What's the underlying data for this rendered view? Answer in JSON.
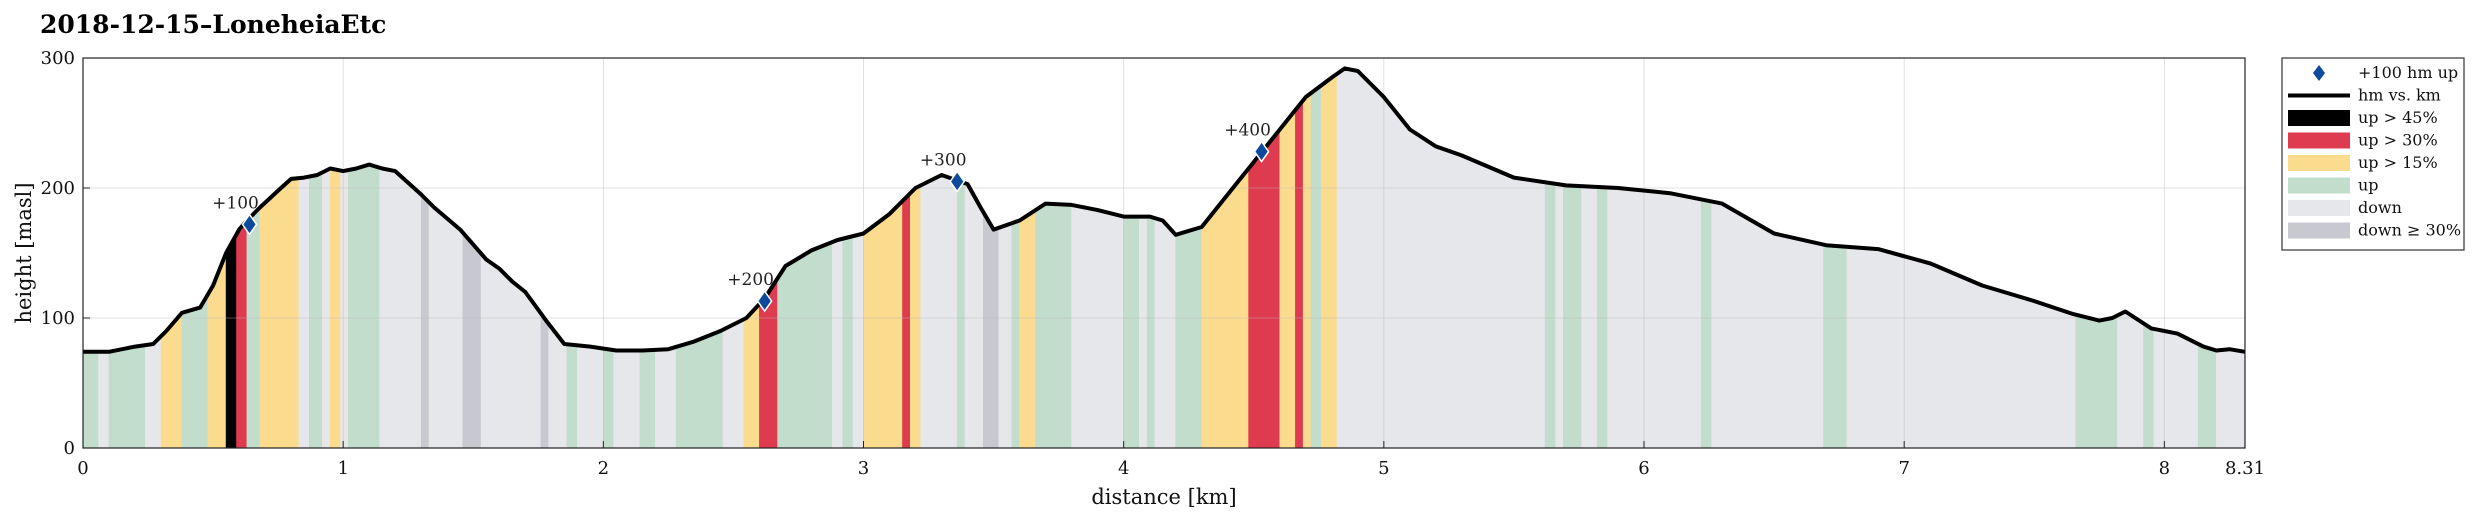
{
  "chart_data": {
    "type": "area",
    "title": "2018-12-15–LoneheiaEtc",
    "xlabel": "distance [km]",
    "ylabel": "height [masl]",
    "xlim": [
      0,
      8.31
    ],
    "ylim": [
      0,
      300
    ],
    "xticks": [
      0,
      1,
      2,
      3,
      4,
      5,
      6,
      7,
      8,
      8.31
    ],
    "xtick_labels": [
      "0",
      "1",
      "2",
      "3",
      "4",
      "5",
      "6",
      "7",
      "8",
      "8.31"
    ],
    "yticks": [
      0,
      100,
      200,
      300
    ],
    "ytick_labels": [
      "0",
      "100",
      "200",
      "300"
    ],
    "grid": true,
    "legend_position": "right",
    "colors": {
      "profile": "#000000",
      "marker": "#0d4a9c",
      "up45": "#000000",
      "up30": "#de3b50",
      "up15": "#fbdc8f",
      "up": "#c3ddcc",
      "down": "#e6e7ea",
      "down30": "#c8c9d0"
    },
    "legend": [
      {
        "key": "marker",
        "label": "+100 hm up"
      },
      {
        "key": "profile",
        "label": "hm vs. km"
      },
      {
        "key": "up45",
        "label": "up > 45%"
      },
      {
        "key": "up30",
        "label": "up > 30%"
      },
      {
        "key": "up15",
        "label": "up > 15%"
      },
      {
        "key": "up",
        "label": "up"
      },
      {
        "key": "down",
        "label": "down"
      },
      {
        "key": "down30",
        "label": "down ≥ 30%"
      }
    ],
    "profile": {
      "x": [
        0,
        0.1,
        0.2,
        0.27,
        0.32,
        0.38,
        0.45,
        0.5,
        0.55,
        0.6,
        0.63,
        0.68,
        0.75,
        0.8,
        0.85,
        0.9,
        0.95,
        1.0,
        1.05,
        1.1,
        1.15,
        1.2,
        1.3,
        1.35,
        1.45,
        1.55,
        1.6,
        1.65,
        1.7,
        1.78,
        1.85,
        1.95,
        2.05,
        2.15,
        2.25,
        2.35,
        2.45,
        2.55,
        2.62,
        2.7,
        2.8,
        2.9,
        3.0,
        3.1,
        3.2,
        3.3,
        3.4,
        3.45,
        3.5,
        3.6,
        3.7,
        3.8,
        3.9,
        4.0,
        4.1,
        4.15,
        4.2,
        4.3,
        4.4,
        4.5,
        4.6,
        4.7,
        4.8,
        4.85,
        4.9,
        5.0,
        5.1,
        5.2,
        5.3,
        5.5,
        5.7,
        5.9,
        6.1,
        6.3,
        6.5,
        6.7,
        6.9,
        7.1,
        7.3,
        7.5,
        7.65,
        7.75,
        7.8,
        7.85,
        7.95,
        8.05,
        8.15,
        8.2,
        8.25,
        8.31
      ],
      "y": [
        74,
        74,
        78,
        80,
        90,
        104,
        108,
        125,
        150,
        168,
        175,
        185,
        198,
        207,
        208,
        210,
        215,
        213,
        215,
        218,
        215,
        213,
        195,
        185,
        168,
        145,
        138,
        128,
        120,
        98,
        80,
        78,
        75,
        75,
        76,
        82,
        90,
        100,
        115,
        140,
        152,
        160,
        165,
        180,
        200,
        210,
        203,
        185,
        168,
        175,
        188,
        187,
        183,
        178,
        178,
        175,
        164,
        170,
        195,
        220,
        245,
        270,
        285,
        292,
        290,
        270,
        245,
        232,
        225,
        208,
        202,
        200,
        196,
        188,
        165,
        156,
        153,
        142,
        125,
        113,
        103,
        98,
        100,
        105,
        92,
        88,
        78,
        75,
        76,
        74
      ]
    },
    "segments": [
      {
        "from": 0.0,
        "to": 0.06,
        "cat": "up"
      },
      {
        "from": 0.06,
        "to": 0.1,
        "cat": "down"
      },
      {
        "from": 0.1,
        "to": 0.24,
        "cat": "up"
      },
      {
        "from": 0.24,
        "to": 0.3,
        "cat": "down"
      },
      {
        "from": 0.3,
        "to": 0.38,
        "cat": "up15"
      },
      {
        "from": 0.38,
        "to": 0.48,
        "cat": "up"
      },
      {
        "from": 0.48,
        "to": 0.55,
        "cat": "up15"
      },
      {
        "from": 0.55,
        "to": 0.59,
        "cat": "up45"
      },
      {
        "from": 0.59,
        "to": 0.63,
        "cat": "up30"
      },
      {
        "from": 0.63,
        "to": 0.68,
        "cat": "up"
      },
      {
        "from": 0.68,
        "to": 0.83,
        "cat": "up15"
      },
      {
        "from": 0.83,
        "to": 0.87,
        "cat": "down"
      },
      {
        "from": 0.87,
        "to": 0.92,
        "cat": "up"
      },
      {
        "from": 0.92,
        "to": 0.95,
        "cat": "down"
      },
      {
        "from": 0.95,
        "to": 0.99,
        "cat": "up15"
      },
      {
        "from": 0.99,
        "to": 1.02,
        "cat": "down"
      },
      {
        "from": 1.02,
        "to": 1.14,
        "cat": "up"
      },
      {
        "from": 1.14,
        "to": 1.3,
        "cat": "down"
      },
      {
        "from": 1.3,
        "to": 1.33,
        "cat": "down30"
      },
      {
        "from": 1.33,
        "to": 1.46,
        "cat": "down"
      },
      {
        "from": 1.46,
        "to": 1.53,
        "cat": "down30"
      },
      {
        "from": 1.53,
        "to": 1.76,
        "cat": "down"
      },
      {
        "from": 1.76,
        "to": 1.79,
        "cat": "down30"
      },
      {
        "from": 1.79,
        "to": 1.86,
        "cat": "down"
      },
      {
        "from": 1.86,
        "to": 1.9,
        "cat": "up"
      },
      {
        "from": 1.9,
        "to": 2.0,
        "cat": "down"
      },
      {
        "from": 2.0,
        "to": 2.04,
        "cat": "up"
      },
      {
        "from": 2.04,
        "to": 2.14,
        "cat": "down"
      },
      {
        "from": 2.14,
        "to": 2.2,
        "cat": "up"
      },
      {
        "from": 2.2,
        "to": 2.28,
        "cat": "down"
      },
      {
        "from": 2.28,
        "to": 2.46,
        "cat": "up"
      },
      {
        "from": 2.46,
        "to": 2.54,
        "cat": "down"
      },
      {
        "from": 2.54,
        "to": 2.6,
        "cat": "up15"
      },
      {
        "from": 2.6,
        "to": 2.67,
        "cat": "up30"
      },
      {
        "from": 2.67,
        "to": 2.88,
        "cat": "up"
      },
      {
        "from": 2.88,
        "to": 2.92,
        "cat": "down"
      },
      {
        "from": 2.92,
        "to": 2.96,
        "cat": "up"
      },
      {
        "from": 2.96,
        "to": 3.0,
        "cat": "down"
      },
      {
        "from": 3.0,
        "to": 3.15,
        "cat": "up15"
      },
      {
        "from": 3.15,
        "to": 3.18,
        "cat": "up30"
      },
      {
        "from": 3.18,
        "to": 3.22,
        "cat": "up15"
      },
      {
        "from": 3.22,
        "to": 3.36,
        "cat": "down"
      },
      {
        "from": 3.36,
        "to": 3.39,
        "cat": "up"
      },
      {
        "from": 3.39,
        "to": 3.46,
        "cat": "down"
      },
      {
        "from": 3.46,
        "to": 3.52,
        "cat": "down30"
      },
      {
        "from": 3.52,
        "to": 3.57,
        "cat": "down"
      },
      {
        "from": 3.57,
        "to": 3.6,
        "cat": "up"
      },
      {
        "from": 3.6,
        "to": 3.66,
        "cat": "up15"
      },
      {
        "from": 3.66,
        "to": 3.8,
        "cat": "up"
      },
      {
        "from": 3.8,
        "to": 4.0,
        "cat": "down"
      },
      {
        "from": 4.0,
        "to": 4.06,
        "cat": "up"
      },
      {
        "from": 4.06,
        "to": 4.09,
        "cat": "down"
      },
      {
        "from": 4.09,
        "to": 4.12,
        "cat": "up"
      },
      {
        "from": 4.12,
        "to": 4.2,
        "cat": "down"
      },
      {
        "from": 4.2,
        "to": 4.3,
        "cat": "up"
      },
      {
        "from": 4.3,
        "to": 4.48,
        "cat": "up15"
      },
      {
        "from": 4.48,
        "to": 4.6,
        "cat": "up30"
      },
      {
        "from": 4.6,
        "to": 4.66,
        "cat": "up15"
      },
      {
        "from": 4.66,
        "to": 4.69,
        "cat": "up30"
      },
      {
        "from": 4.69,
        "to": 4.72,
        "cat": "up15"
      },
      {
        "from": 4.72,
        "to": 4.76,
        "cat": "up"
      },
      {
        "from": 4.76,
        "to": 4.82,
        "cat": "up15"
      },
      {
        "from": 4.82,
        "to": 5.62,
        "cat": "down"
      },
      {
        "from": 5.62,
        "to": 5.66,
        "cat": "up"
      },
      {
        "from": 5.66,
        "to": 5.69,
        "cat": "down"
      },
      {
        "from": 5.69,
        "to": 5.76,
        "cat": "up"
      },
      {
        "from": 5.76,
        "to": 5.82,
        "cat": "down"
      },
      {
        "from": 5.82,
        "to": 5.86,
        "cat": "up"
      },
      {
        "from": 5.86,
        "to": 6.22,
        "cat": "down"
      },
      {
        "from": 6.22,
        "to": 6.26,
        "cat": "up"
      },
      {
        "from": 6.26,
        "to": 6.69,
        "cat": "down"
      },
      {
        "from": 6.69,
        "to": 6.78,
        "cat": "up"
      },
      {
        "from": 6.78,
        "to": 7.66,
        "cat": "down"
      },
      {
        "from": 7.66,
        "to": 7.82,
        "cat": "up"
      },
      {
        "from": 7.82,
        "to": 7.92,
        "cat": "down"
      },
      {
        "from": 7.92,
        "to": 7.96,
        "cat": "up"
      },
      {
        "from": 7.96,
        "to": 8.13,
        "cat": "down"
      },
      {
        "from": 8.13,
        "to": 8.2,
        "cat": "up"
      },
      {
        "from": 8.2,
        "to": 8.31,
        "cat": "down"
      }
    ],
    "markers": [
      {
        "x": 0.64,
        "y": 172,
        "label": "+100"
      },
      {
        "x": 2.62,
        "y": 113,
        "label": "+200"
      },
      {
        "x": 3.36,
        "y": 205,
        "label": "+300"
      },
      {
        "x": 4.53,
        "y": 228,
        "label": "+400"
      }
    ]
  }
}
